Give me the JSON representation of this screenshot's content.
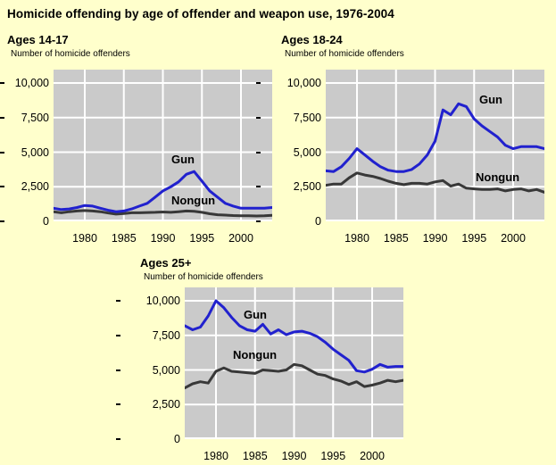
{
  "page": {
    "title": "Homicide offending by age of offender and weapon use, 1976-2004",
    "background": "#FFFFCC"
  },
  "colors": {
    "plot_bg": "#CACACA",
    "gridline": "#FFFFFF",
    "gun": "#2121CE",
    "nongun": "#383838",
    "text": "#000000"
  },
  "axis": {
    "y_tick_labels": [
      "10,000",
      "7,500",
      "5,000",
      "2,500",
      "0"
    ],
    "y_tick_values": [
      10000,
      7500,
      5000,
      2500,
      0
    ],
    "x_tick_labels": [
      "1980",
      "1985",
      "1990",
      "1995",
      "2000"
    ],
    "x_tick_years": [
      1980,
      1985,
      1990,
      1995,
      2000
    ],
    "grid": true
  },
  "chart_data": [
    {
      "type": "line",
      "title": "Ages 14-17",
      "ylabel": "Number of homicide offenders",
      "x_range": [
        1976,
        2004
      ],
      "ylim": [
        0,
        10000
      ],
      "series": [
        {
          "name": "Gun",
          "color_key": "gun",
          "label_pos": {
            "x": 132,
            "y": 93
          },
          "values": [
            950,
            850,
            900,
            1000,
            1150,
            1100,
            950,
            800,
            700,
            750,
            900,
            1100,
            1300,
            1750,
            2200,
            2500,
            2850,
            3400,
            3600,
            2900,
            2200,
            1750,
            1300,
            1100,
            950,
            950,
            950,
            950,
            1000
          ]
        },
        {
          "name": "Nongun",
          "color_key": "nongun",
          "label_pos": {
            "x": 132,
            "y": 139
          },
          "values": [
            700,
            620,
            700,
            750,
            780,
            750,
            700,
            600,
            520,
            560,
            620,
            620,
            640,
            650,
            680,
            650,
            700,
            750,
            720,
            650,
            550,
            480,
            450,
            420,
            400,
            400,
            390,
            400,
            430
          ]
        }
      ]
    },
    {
      "type": "line",
      "title": "Ages 18-24",
      "ylabel": "Number of homicide offenders",
      "x_range": [
        1976,
        2004
      ],
      "ylim": [
        0,
        10000
      ],
      "series": [
        {
          "name": "Gun",
          "color_key": "gun",
          "label_pos": {
            "x": 172,
            "y": 26
          },
          "values": [
            3650,
            3600,
            3950,
            4550,
            5250,
            4800,
            4350,
            3950,
            3700,
            3600,
            3600,
            3750,
            4150,
            4800,
            5800,
            8050,
            7700,
            8500,
            8300,
            7400,
            6900,
            6500,
            6100,
            5500,
            5250,
            5400,
            5400,
            5400,
            5250
          ]
        },
        {
          "name": "Nongun",
          "color_key": "nongun",
          "label_pos": {
            "x": 168,
            "y": 113
          },
          "values": [
            2600,
            2700,
            2700,
            3150,
            3500,
            3350,
            3250,
            3100,
            2900,
            2750,
            2650,
            2750,
            2750,
            2700,
            2850,
            2950,
            2550,
            2700,
            2400,
            2350,
            2300,
            2300,
            2350,
            2200,
            2300,
            2350,
            2200,
            2300,
            2100
          ]
        }
      ]
    },
    {
      "type": "line",
      "title": "Ages 25+",
      "ylabel": "Number of homicide offenders",
      "x_range": [
        1976,
        2004
      ],
      "ylim": [
        0,
        10000
      ],
      "series": [
        {
          "name": "Gun",
          "color_key": "gun",
          "label_pos": {
            "x": 66,
            "y": 23
          },
          "values": [
            8200,
            7900,
            8100,
            8900,
            10000,
            9500,
            8800,
            8200,
            7900,
            7800,
            8300,
            7600,
            7900,
            7550,
            7750,
            7800,
            7650,
            7400,
            7000,
            6500,
            6100,
            5700,
            4950,
            4850,
            5050,
            5400,
            5200,
            5250,
            5250
          ]
        },
        {
          "name": "Nongun",
          "color_key": "nongun",
          "label_pos": {
            "x": 54,
            "y": 68
          },
          "values": [
            3700,
            4000,
            4150,
            4050,
            4900,
            5150,
            4900,
            4850,
            4800,
            4750,
            5000,
            4950,
            4900,
            5000,
            5400,
            5300,
            5000,
            4700,
            4600,
            4350,
            4200,
            3950,
            4150,
            3800,
            3900,
            4050,
            4250,
            4150,
            4250
          ]
        }
      ]
    }
  ]
}
